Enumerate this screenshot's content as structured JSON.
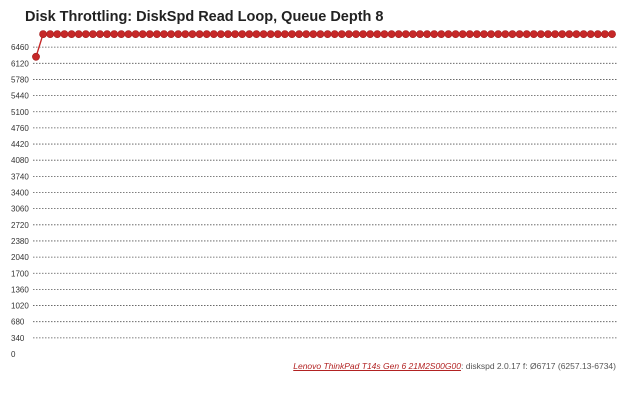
{
  "chart_data": {
    "type": "line",
    "title": "Disk Throttling: DiskSpd Read Loop, Queue Depth 8",
    "xlabel": "",
    "ylabel": "",
    "ylim": [
      0,
      6800
    ],
    "yticks": [
      0,
      340,
      680,
      1020,
      1360,
      1700,
      2040,
      2380,
      2720,
      3060,
      3400,
      3740,
      4080,
      4420,
      4760,
      5100,
      5440,
      5780,
      6120,
      6460
    ],
    "grid": true,
    "legend": "none",
    "series": [
      {
        "color": "#c62828",
        "values": [
          6257,
          6734,
          6734,
          6734,
          6734,
          6734,
          6734,
          6734,
          6734,
          6734,
          6734,
          6734,
          6734,
          6734,
          6734,
          6734,
          6734,
          6734,
          6734,
          6734,
          6734,
          6734,
          6734,
          6734,
          6734,
          6734,
          6734,
          6734,
          6734,
          6734,
          6734,
          6734,
          6734,
          6734,
          6734,
          6734,
          6734,
          6734,
          6734,
          6734,
          6734,
          6734,
          6734,
          6734,
          6734,
          6734,
          6734,
          6734,
          6734,
          6734,
          6734,
          6734,
          6734,
          6734,
          6734,
          6734,
          6734,
          6734,
          6734,
          6734,
          6734,
          6734,
          6734,
          6734,
          6734,
          6734,
          6734,
          6734,
          6734,
          6734,
          6734,
          6734,
          6734,
          6734,
          6734,
          6734,
          6734,
          6734,
          6734,
          6734,
          6734,
          6734
        ]
      }
    ]
  },
  "footer": {
    "device_link": "Lenovo ThinkPad T14s Gen 6 21M2S00G00",
    "separator": ":",
    "details": " diskspd 2.0.17 f: Ø6717 (6257.13-6734)"
  },
  "colors": {
    "line": "#c62828",
    "marker_stroke": "#a51f1f",
    "grid": "#555555"
  }
}
